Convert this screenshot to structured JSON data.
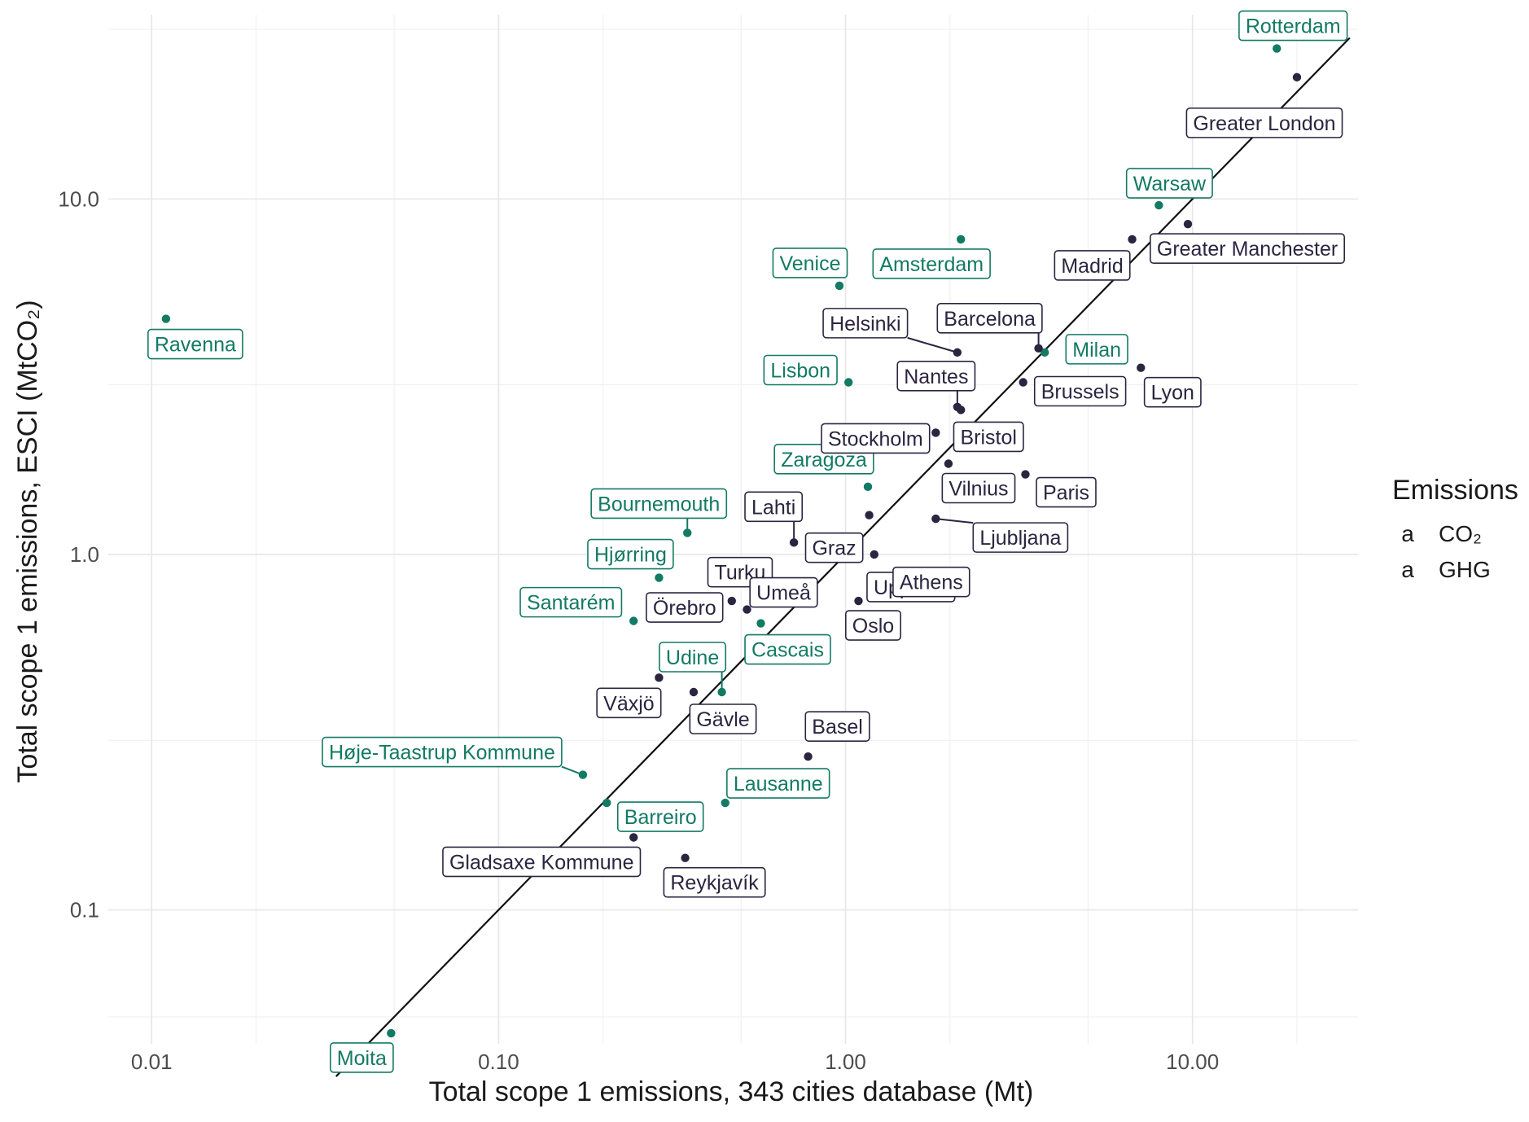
{
  "chart_data": {
    "type": "scatter",
    "xlabel": "Total scope 1 emissions, 343 cities database (Mt)",
    "ylabel": "Total scope 1 emissions, ESCI (MtCO₂)",
    "x_scale": "log10",
    "y_scale": "log10",
    "xlim": [
      0.0075,
      30
    ],
    "ylim": [
      0.042,
      33
    ],
    "x_ticks": [
      "0.01",
      "0.10",
      "1.00",
      "10.00"
    ],
    "x_tick_values": [
      0.01,
      0.1,
      1,
      10
    ],
    "y_ticks": [
      "0.1",
      "1.0",
      "10.0"
    ],
    "y_tick_values": [
      0.1,
      1,
      10
    ],
    "grid": true,
    "reference_line": "y = x",
    "legend": {
      "title": "Emissions",
      "placement": "right",
      "key_glyph": "a",
      "entries": [
        {
          "name": "CO₂",
          "color": "#137a63"
        },
        {
          "name": "GHG",
          "color": "#2b2540"
        }
      ]
    },
    "series": [
      {
        "name": "CO₂",
        "color": "#137a63",
        "points": [
          {
            "label": "Rotterdam",
            "x": 17.5,
            "y": 26.5
          },
          {
            "label": "Warsaw",
            "x": 8.0,
            "y": 9.6
          },
          {
            "label": "Amsterdam",
            "x": 2.15,
            "y": 7.7
          },
          {
            "label": "Venice",
            "x": 0.96,
            "y": 5.7
          },
          {
            "label": "Ravenna",
            "x": 0.011,
            "y": 4.6
          },
          {
            "label": "Milan",
            "x": 3.75,
            "y": 3.7
          },
          {
            "label": "Lisbon",
            "x": 1.02,
            "y": 3.05
          },
          {
            "label": "Zaragoza",
            "x": 1.16,
            "y": 1.55
          },
          {
            "label": "Bournemouth",
            "x": 0.35,
            "y": 1.15
          },
          {
            "label": "Hjørring",
            "x": 0.29,
            "y": 0.86
          },
          {
            "label": "Santarém",
            "x": 0.245,
            "y": 0.65
          },
          {
            "label": "Cascais",
            "x": 0.57,
            "y": 0.64
          },
          {
            "label": "Udine",
            "x": 0.44,
            "y": 0.41
          },
          {
            "label": "Høje-Taastrup Kommune",
            "x": 0.175,
            "y": 0.24
          },
          {
            "label": "Barreiro",
            "x": 0.205,
            "y": 0.2
          },
          {
            "label": "Lausanne",
            "x": 0.45,
            "y": 0.2
          },
          {
            "label": "Moita",
            "x": 0.049,
            "y": 0.045
          }
        ]
      },
      {
        "name": "GHG",
        "color": "#2b2540",
        "points": [
          {
            "label": "Greater London",
            "x": 20.0,
            "y": 22.0
          },
          {
            "label": "Greater Manchester",
            "x": 9.7,
            "y": 8.5
          },
          {
            "label": "Madrid",
            "x": 6.7,
            "y": 7.7
          },
          {
            "label": "Helsinki",
            "x": 2.1,
            "y": 3.7
          },
          {
            "label": "Barcelona",
            "x": 3.6,
            "y": 3.8
          },
          {
            "label": "Lyon",
            "x": 7.1,
            "y": 3.35
          },
          {
            "label": "Brussels",
            "x": 3.25,
            "y": 3.05
          },
          {
            "label": "Nantes",
            "x": 2.1,
            "y": 2.6
          },
          {
            "label": "Stockholm",
            "x": 1.82,
            "y": 2.2
          },
          {
            "label": "Bristol",
            "x": 2.15,
            "y": 2.55
          },
          {
            "label": "Vilnius",
            "x": 1.98,
            "y": 1.8
          },
          {
            "label": "Paris",
            "x": 3.3,
            "y": 1.68
          },
          {
            "label": "Lahti",
            "x": 0.71,
            "y": 1.08
          },
          {
            "label": "Graz",
            "x": 1.17,
            "y": 1.29
          },
          {
            "label": "Uppsala",
            "x": 1.21,
            "y": 1.0
          },
          {
            "label": "Ljubljana",
            "x": 1.82,
            "y": 1.26
          },
          {
            "label": "Turku",
            "x": 0.42,
            "y": 0.93
          },
          {
            "label": "Athens",
            "x": 1.25,
            "y": 0.79
          },
          {
            "label": "Oslo",
            "x": 1.09,
            "y": 0.74
          },
          {
            "label": "Örebro",
            "x": 0.47,
            "y": 0.74
          },
          {
            "label": "Umeå",
            "x": 0.52,
            "y": 0.7
          },
          {
            "label": "Växjö",
            "x": 0.29,
            "y": 0.45
          },
          {
            "label": "Gävle",
            "x": 0.365,
            "y": 0.41
          },
          {
            "label": "Basel",
            "x": 0.78,
            "y": 0.27
          },
          {
            "label": "Gladsaxe Kommune",
            "x": 0.245,
            "y": 0.16
          },
          {
            "label": "Reykjavík",
            "x": 0.345,
            "y": 0.14
          }
        ]
      }
    ]
  }
}
